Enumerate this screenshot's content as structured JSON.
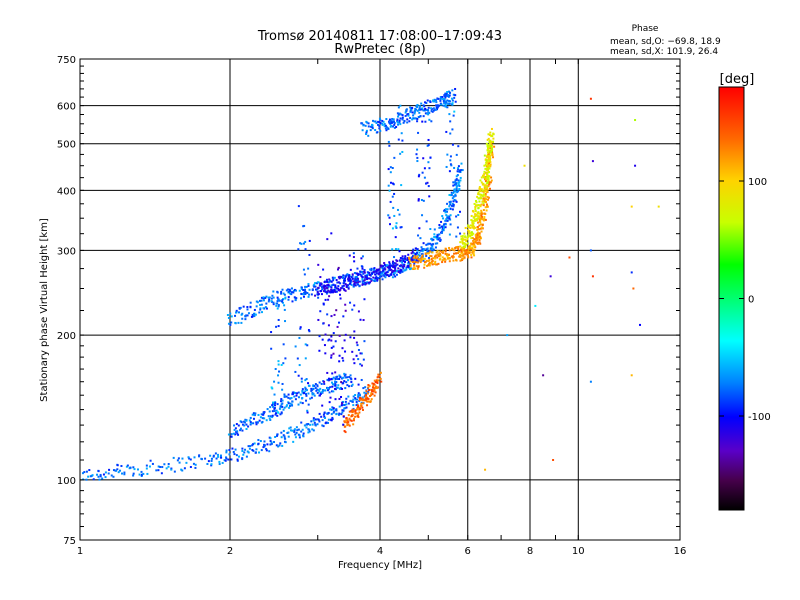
{
  "chart_data": {
    "type": "scatter",
    "title": "Tromsø 20140811 17:08:00–17:09:43",
    "subtitle": "RwPretec (8p)",
    "xlabel": "Frequency [MHz]",
    "ylabel": "Stationary phase Virtual Height [km]",
    "x_scale": "log",
    "y_scale": "log",
    "xlim": [
      1,
      16
    ],
    "ylim": [
      75,
      750
    ],
    "x_ticks": [
      1,
      2,
      4,
      6,
      8,
      10,
      16
    ],
    "y_ticks": [
      75,
      100,
      200,
      300,
      400,
      500,
      600,
      750
    ],
    "grid": true,
    "info": {
      "heading": "Phase",
      "line1": "mean, sd,O: −69.8, 18.9",
      "line2": "mean, sd,X: 101.9, 26.4"
    },
    "colorbar": {
      "label": "[deg]",
      "range": [
        -180,
        180
      ],
      "ticks": [
        100,
        0,
        -100
      ],
      "colormap": "rainbow"
    },
    "trace_segments": [
      {
        "x": [
          1.0,
          1.3,
          1.8,
          2.2,
          2.6,
          3.0,
          3.4,
          3.8
        ],
        "y": [
          102,
          105,
          110,
          115,
          123,
          132,
          142,
          152
        ],
        "phase": -75
      },
      {
        "x": [
          2.0,
          2.3,
          2.6,
          2.9,
          3.2,
          3.5
        ],
        "y": [
          125,
          135,
          145,
          152,
          158,
          162
        ],
        "phase": -75
      },
      {
        "x": [
          3.4,
          3.6,
          3.8,
          4.0
        ],
        "y": [
          130,
          140,
          150,
          162
        ],
        "phase": 140
      },
      {
        "x": [
          2.0,
          2.3,
          2.6,
          3.0,
          3.4,
          3.8,
          4.2,
          4.6,
          5.0,
          5.3,
          5.6,
          5.8
        ],
        "y": [
          215,
          230,
          240,
          250,
          258,
          265,
          272,
          282,
          300,
          330,
          380,
          450
        ],
        "phase": -75
      },
      {
        "x": [
          3.0,
          3.3,
          3.6,
          4.0,
          4.4,
          4.8
        ],
        "y": [
          248,
          255,
          262,
          270,
          280,
          295
        ],
        "phase": -105
      },
      {
        "x": [
          4.6,
          5.0,
          5.4,
          5.8,
          6.1,
          6.3,
          6.45,
          6.6,
          6.7
        ],
        "y": [
          282,
          288,
          292,
          296,
          300,
          320,
          360,
          420,
          500
        ],
        "phase": 120
      },
      {
        "x": [
          5.8,
          6.1,
          6.3,
          6.5,
          6.6,
          6.7
        ],
        "y": [
          310,
          330,
          370,
          420,
          470,
          530
        ],
        "phase": 80
      },
      {
        "x": [
          3.7,
          4.1,
          4.5,
          4.9,
          5.3,
          5.6
        ],
        "y": [
          535,
          550,
          570,
          590,
          610,
          630
        ],
        "phase": -75
      }
    ],
    "vertical_bands": [
      {
        "x": 2.5,
        "y": [
          130,
          250
        ],
        "phase": -70
      },
      {
        "x": 2.8,
        "y": [
          130,
          380
        ],
        "phase": -80
      },
      {
        "x": 3.1,
        "y": [
          130,
          330
        ],
        "phase": -105
      },
      {
        "x": 3.3,
        "y": [
          130,
          280
        ],
        "phase": -115
      },
      {
        "x": 3.6,
        "y": [
          150,
          300
        ],
        "phase": -95
      },
      {
        "x": 4.3,
        "y": [
          290,
          600
        ],
        "phase": -75
      },
      {
        "x": 4.9,
        "y": [
          300,
          600
        ],
        "phase": -85
      },
      {
        "x": 5.6,
        "y": [
          320,
          640
        ],
        "phase": -75
      }
    ],
    "scattered_points": [
      {
        "x": 10.6,
        "y": 620,
        "phase": 160
      },
      {
        "x": 13.0,
        "y": 560,
        "phase": 60
      },
      {
        "x": 13.0,
        "y": 450,
        "phase": -110
      },
      {
        "x": 10.7,
        "y": 460,
        "phase": -120
      },
      {
        "x": 12.8,
        "y": 370,
        "phase": 100
      },
      {
        "x": 14.5,
        "y": 370,
        "phase": 90
      },
      {
        "x": 10.6,
        "y": 300,
        "phase": -80
      },
      {
        "x": 12.8,
        "y": 270,
        "phase": -90
      },
      {
        "x": 12.9,
        "y": 250,
        "phase": 140
      },
      {
        "x": 13.3,
        "y": 210,
        "phase": -100
      },
      {
        "x": 9.6,
        "y": 290,
        "phase": 150
      },
      {
        "x": 8.8,
        "y": 265,
        "phase": -120
      },
      {
        "x": 10.7,
        "y": 265,
        "phase": 160
      },
      {
        "x": 8.5,
        "y": 165,
        "phase": -140
      },
      {
        "x": 10.6,
        "y": 160,
        "phase": -70
      },
      {
        "x": 12.8,
        "y": 165,
        "phase": 110
      },
      {
        "x": 8.9,
        "y": 110,
        "phase": 150
      },
      {
        "x": 7.2,
        "y": 200,
        "phase": -60
      },
      {
        "x": 6.5,
        "y": 105,
        "phase": 110
      },
      {
        "x": 8.2,
        "y": 230,
        "phase": -40
      },
      {
        "x": 7.8,
        "y": 450,
        "phase": 90
      }
    ]
  }
}
